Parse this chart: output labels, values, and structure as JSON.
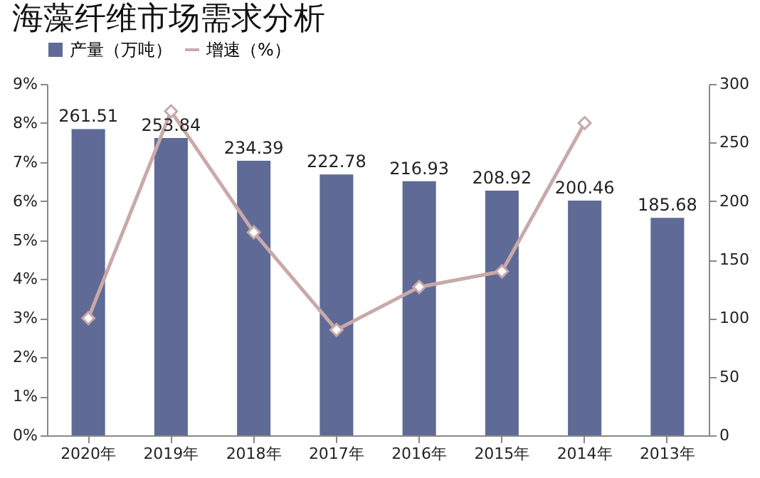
{
  "chart_data": {
    "type": "bar",
    "title": "海藻纤维市场需求分析",
    "categories": [
      "2020年",
      "2019年",
      "2018年",
      "2017年",
      "2016年",
      "2015年",
      "2014年",
      "2013年"
    ],
    "series": [
      {
        "name": "产量（万吨）",
        "axis": "y2",
        "color": "#5f6b96",
        "values": [
          261.51,
          253.84,
          234.39,
          222.78,
          216.93,
          208.92,
          200.46,
          185.68
        ],
        "value_labels": [
          "261.51",
          "253.84",
          "234.39",
          "222.78",
          "216.93",
          "208.92",
          "200.46",
          "185.68"
        ]
      },
      {
        "name": "增速（%）",
        "type": "line",
        "color": "#c9a9a9",
        "values": [
          3.0,
          8.3,
          5.2,
          2.7,
          3.8,
          4.2,
          8.0,
          null
        ]
      }
    ],
    "marker": "diamond",
    "legend": "top",
    "grid": false,
    "ylim": [
      0,
      9
    ],
    "yticks": [
      {
        "value": 0,
        "label": "0%"
      },
      {
        "value": 1,
        "label": "1%"
      },
      {
        "value": 2,
        "label": "2%"
      },
      {
        "value": 3,
        "label": "3%"
      },
      {
        "value": 4,
        "label": "4%"
      },
      {
        "value": 5,
        "label": "5%"
      },
      {
        "value": 6,
        "label": "6%"
      },
      {
        "value": 7,
        "label": "7%"
      },
      {
        "value": 8,
        "label": "8%"
      },
      {
        "value": 9,
        "label": "9%"
      }
    ],
    "y2lim": [
      0,
      300
    ],
    "y2ticks": [
      0,
      50,
      100,
      150,
      200,
      250,
      300
    ]
  }
}
